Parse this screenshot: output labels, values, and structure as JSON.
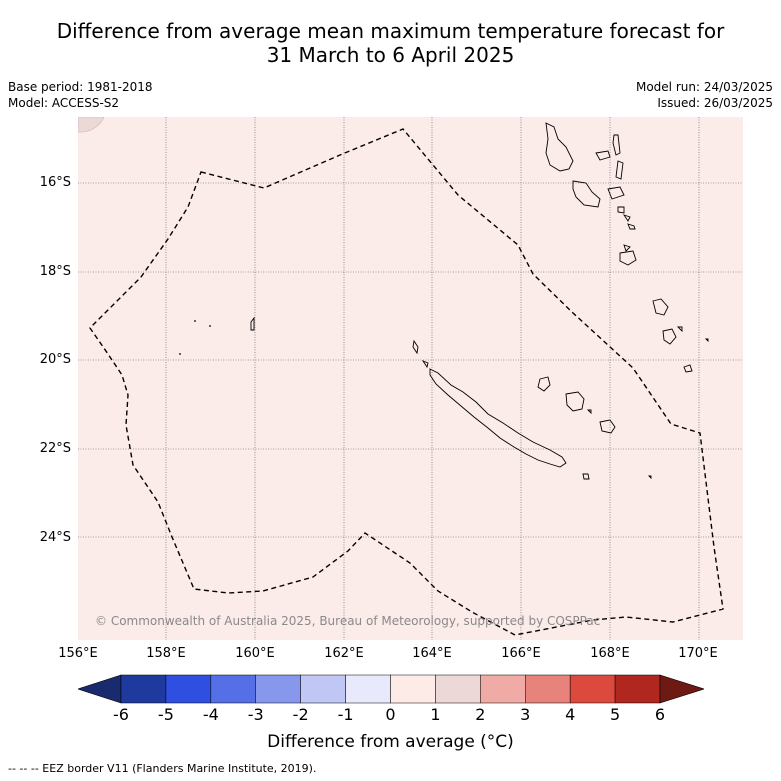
{
  "title_line1": "Difference from average mean maximum temperature forecast for",
  "title_line2": "31 March to 6 April 2025",
  "meta": {
    "base_period": "Base period: 1981-2018",
    "model": "Model: ACCESS-S2",
    "model_run": "Model run: 24/03/2025",
    "issued": "Issued: 26/03/2025"
  },
  "lat_labels": [
    "16°S",
    "18°S",
    "20°S",
    "22°S",
    "24°S"
  ],
  "lon_labels": [
    "156°E",
    "158°E",
    "160°E",
    "162°E",
    "164°E",
    "166°E",
    "168°E",
    "170°E"
  ],
  "copyright": "© Commonwealth of Australia 2025, Bureau of Meteorology, supported by COSPPac",
  "colorbar": {
    "ticks": [
      "-6",
      "-5",
      "-4",
      "-3",
      "-2",
      "-1",
      "0",
      "1",
      "2",
      "3",
      "4",
      "5",
      "6"
    ],
    "colors": [
      "#1f3a9e",
      "#2e4fe0",
      "#5570e6",
      "#8797ec",
      "#c1c7f4",
      "#e8eafb",
      "#fdebe8",
      "#ecd8d6",
      "#f0aba6",
      "#e8837c",
      "#dc4a3e",
      "#b0271f"
    ],
    "under_color": "#1a2a6e",
    "over_color": "#6e1a14",
    "label": "Difference from average (°C)"
  },
  "map_fill_color": "#fbebe9",
  "footnote": "--  --  -- EEZ border V11 (Flanders Marine Institute, 2019)."
}
